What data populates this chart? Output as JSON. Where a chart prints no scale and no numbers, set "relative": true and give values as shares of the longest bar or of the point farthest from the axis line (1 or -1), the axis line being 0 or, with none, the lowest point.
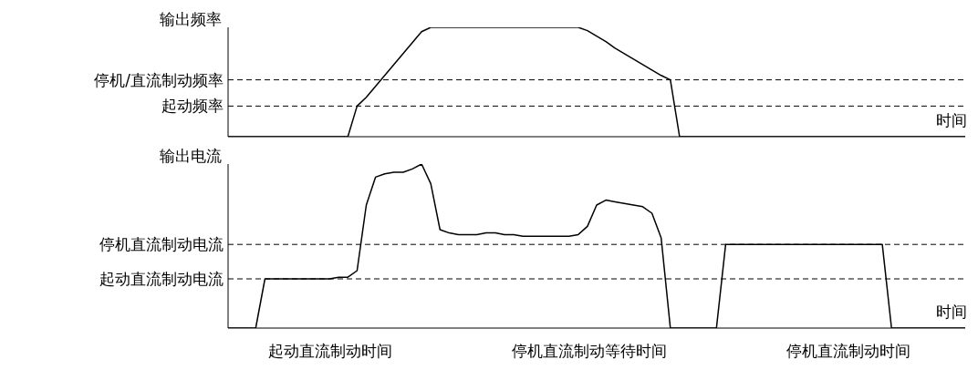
{
  "chart_data": [
    {
      "type": "line",
      "ylabel": "输出频率",
      "xlabel": "时间",
      "relative": true,
      "marker": "none",
      "line_style": "solid",
      "categories": [
        null,
        null,
        null,
        null,
        null,
        null,
        null,
        null,
        null,
        null,
        null,
        null,
        null,
        null,
        null,
        null,
        null,
        null,
        null,
        null,
        null,
        null,
        null,
        null,
        null,
        null,
        null,
        null,
        null,
        null,
        null,
        null,
        null,
        null,
        null,
        null,
        null,
        null,
        null,
        null,
        null,
        null,
        null,
        null,
        null,
        null,
        null,
        null,
        null,
        null,
        null,
        null,
        null,
        null,
        null,
        null,
        null,
        null,
        null,
        null,
        null,
        null,
        null,
        null,
        null,
        null,
        null,
        null,
        null,
        null,
        null,
        null,
        null,
        null,
        null,
        null,
        null,
        null,
        null,
        null,
        null
      ],
      "series": [
        {
          "color": "#000000",
          "values": [
            0,
            0,
            0,
            0,
            0,
            0,
            0,
            0,
            0,
            0,
            0,
            0,
            0,
            0,
            0.28,
            0.36,
            0.46,
            0.56,
            0.66,
            0.76,
            0.86,
            0.96,
            1,
            1,
            1,
            1,
            1,
            1,
            1,
            1,
            1,
            1,
            1,
            1,
            1,
            1,
            1,
            1,
            1,
            0.97,
            0.92,
            0.87,
            0.81,
            0.76,
            0.71,
            0.66,
            0.61,
            0.56,
            0.52,
            0,
            0,
            0,
            0,
            0,
            0,
            0,
            0,
            0,
            0,
            0,
            0,
            0,
            0,
            0,
            0,
            0,
            0,
            0,
            0,
            0,
            0,
            0,
            0,
            0,
            0,
            0,
            0,
            0,
            0,
            0,
            0
          ]
        }
      ],
      "ref_lines": [
        {
          "axis": "y",
          "value": 0.52,
          "label": "停机/直流制动频率",
          "color": "#000000",
          "line_style": "dashed"
        },
        {
          "axis": "y",
          "value": 0.28,
          "label": "起动频率",
          "color": "#000000",
          "line_style": "dashed"
        }
      ]
    },
    {
      "type": "line",
      "ylabel": "输出电流",
      "xlabel": "时间",
      "relative": true,
      "marker": "none",
      "line_style": "solid",
      "categories": [
        null,
        null,
        null,
        null,
        null,
        null,
        null,
        null,
        null,
        null,
        null,
        null,
        null,
        null,
        null,
        null,
        null,
        null,
        null,
        null,
        null,
        null,
        null,
        null,
        null,
        null,
        null,
        null,
        null,
        null,
        null,
        null,
        null,
        null,
        null,
        null,
        null,
        null,
        null,
        null,
        null,
        null,
        null,
        null,
        null,
        null,
        null,
        null,
        null,
        null,
        null,
        null,
        null,
        null,
        null,
        null,
        null,
        null,
        null,
        null,
        null,
        null,
        null,
        null,
        null,
        null,
        null,
        null,
        null,
        null,
        null,
        null,
        null,
        null,
        null,
        null,
        null,
        null,
        null,
        null,
        null
      ],
      "series": [
        {
          "color": "#000000",
          "values": [
            0,
            0,
            0,
            0,
            0.3,
            0.3,
            0.3,
            0.3,
            0.3,
            0.3,
            0.3,
            0.3,
            0.31,
            0.31,
            0.35,
            0.75,
            0.92,
            0.94,
            0.95,
            0.95,
            0.97,
            1,
            0.88,
            0.6,
            0.58,
            0.57,
            0.57,
            0.57,
            0.58,
            0.58,
            0.57,
            0.57,
            0.56,
            0.56,
            0.56,
            0.56,
            0.56,
            0.56,
            0.57,
            0.62,
            0.75,
            0.78,
            0.77,
            0.76,
            0.75,
            0.74,
            0.7,
            0.55,
            0,
            0,
            0,
            0,
            0,
            0,
            0.51,
            0.51,
            0.51,
            0.51,
            0.51,
            0.51,
            0.51,
            0.51,
            0.51,
            0.51,
            0.51,
            0.51,
            0.51,
            0.51,
            0.51,
            0.51,
            0.51,
            0.51,
            0,
            0,
            0,
            0,
            0,
            0,
            0,
            0,
            0
          ]
        }
      ],
      "ref_lines": [
        {
          "axis": "y",
          "value": 0.51,
          "label": "停机直流制动电流",
          "color": "#000000",
          "line_style": "dashed"
        },
        {
          "axis": "y",
          "value": 0.3,
          "label": "起动直流制动电流",
          "color": "#000000",
          "line_style": "dashed"
        }
      ],
      "annotations": [
        "起动直流制动时间",
        "停机直流制动等待时间",
        "停机直流制动时间"
      ]
    }
  ]
}
